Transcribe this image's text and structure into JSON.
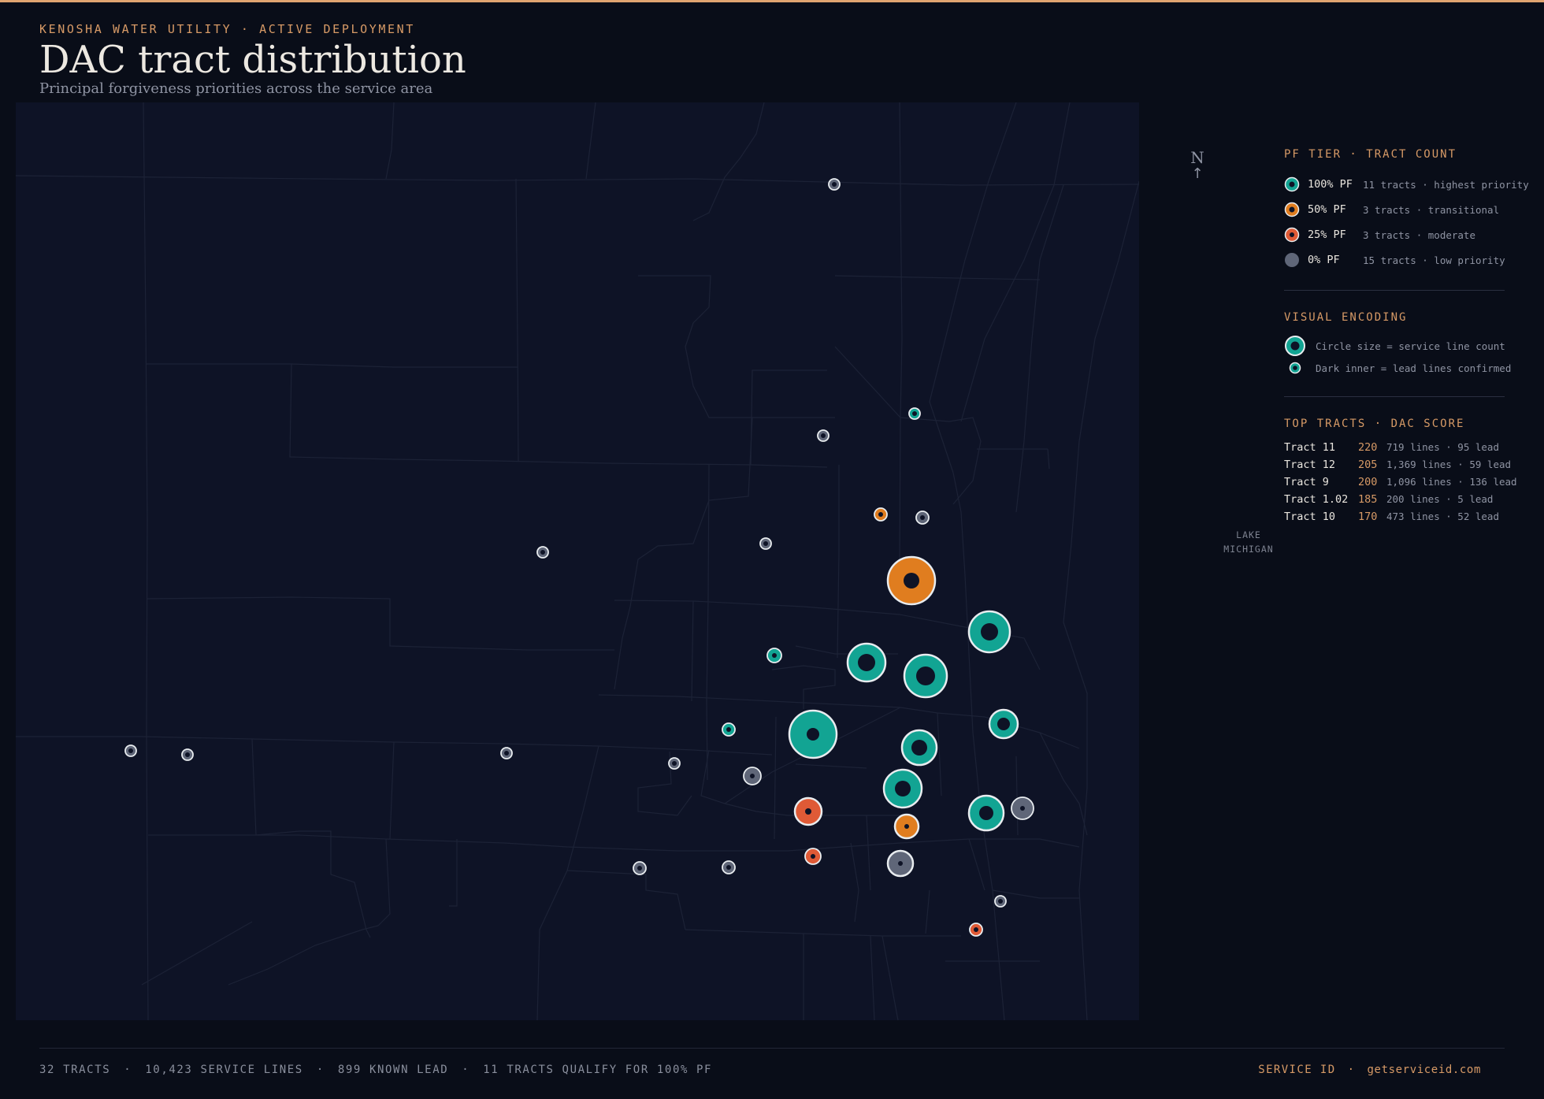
{
  "header": {
    "eyebrow": "KENOSHA WATER UTILITY · ACTIVE DEPLOYMENT",
    "title": "DAC tract distribution",
    "subtitle": "Principal forgiveness priorities across the service area"
  },
  "map": {
    "compass_letter": "N",
    "compass_arrow": "↑",
    "lake_label_line1": "LAKE",
    "lake_label_line2": "MICHIGAN"
  },
  "legend": {
    "tier_heading": "PF TIER · TRACT COUNT",
    "tiers": [
      {
        "label": "100% PF",
        "desc": "11 tracts · highest priority",
        "color": "#12a493"
      },
      {
        "label": "50% PF",
        "desc": "3 tracts  · transitional",
        "color": "#e07d1f"
      },
      {
        "label": "25% PF",
        "desc": "3 tracts  · moderate",
        "color": "#df5a36"
      },
      {
        "label": "0% PF",
        "desc": "15 tracts · low priority",
        "color": "#5f6678"
      }
    ],
    "encoding_heading": "VISUAL ENCODING",
    "encoding": [
      {
        "text": "Circle size = service line count"
      },
      {
        "text": "Dark inner = lead lines confirmed"
      }
    ],
    "top_heading": "TOP TRACTS · DAC SCORE",
    "top_tracts": [
      {
        "name": "Tract 11",
        "score": "220",
        "meta": "719 lines · 95 lead"
      },
      {
        "name": "Tract 12",
        "score": "205",
        "meta": "1,369 lines · 59 lead"
      },
      {
        "name": "Tract 9",
        "score": "200",
        "meta": "1,096 lines · 136 lead"
      },
      {
        "name": "Tract 1.02",
        "score": "185",
        "meta": "200 lines · 5 lead"
      },
      {
        "name": "Tract 10",
        "score": "170",
        "meta": "473 lines · 52 lead"
      }
    ]
  },
  "footer": {
    "tracts": "32 TRACTS",
    "lines": "10,423 SERVICE LINES",
    "lead": "899 KNOWN LEAD",
    "qualify": "11 TRACTS QUALIFY FOR 100% PF",
    "sep": "·",
    "brand": "SERVICE ID",
    "url": "getserviceid.com"
  },
  "colors": {
    "tier_100": "#12a493",
    "tier_50": "#e07d1f",
    "tier_25": "#df5a36",
    "tier_0": "#5f6678",
    "accent": "#d79a66"
  }
}
